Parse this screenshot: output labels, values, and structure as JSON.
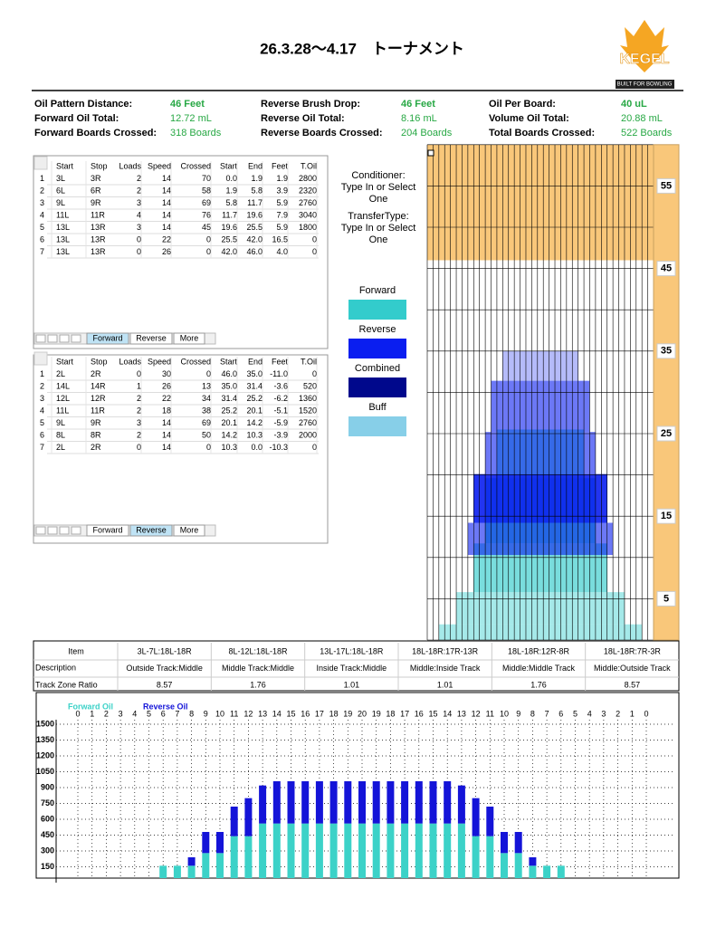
{
  "header": {
    "title": "26.3.28～4.17　トーナメント",
    "logo": "KEGEL",
    "logo_tagline": "BUILT FOR BOWLING"
  },
  "stats": [
    {
      "label": "Oil Pattern Distance:",
      "value": "46 Feet"
    },
    {
      "label": "Reverse Brush Drop:",
      "value": "46 Feet"
    },
    {
      "label": "Oil Per Board:",
      "value": "40 uL"
    },
    {
      "label": "Forward Oil Total:",
      "value": "12.72 mL"
    },
    {
      "label": "Reverse Oil Total:",
      "value": "8.16 mL"
    },
    {
      "label": "Volume Oil Total:",
      "value": "20.88 mL"
    },
    {
      "label": "Forward Boards Crossed:",
      "value": "318 Boards"
    },
    {
      "label": "Reverse Boards Crossed:",
      "value": "204 Boards"
    },
    {
      "label": "Total Boards Crossed:",
      "value": "522 Boards"
    }
  ],
  "forward_table": {
    "headers": [
      "Start",
      "Stop",
      "Loads",
      "Speed",
      "Crossed",
      "Start",
      "End",
      "Feet",
      "T.Oil"
    ],
    "rows": [
      [
        "1",
        "3L",
        "3R",
        "2",
        "14",
        "70",
        "0.0",
        "1.9",
        "1.9",
        "2800"
      ],
      [
        "2",
        "6L",
        "6R",
        "2",
        "14",
        "58",
        "1.9",
        "5.8",
        "3.9",
        "2320"
      ],
      [
        "3",
        "9L",
        "9R",
        "3",
        "14",
        "69",
        "5.8",
        "11.7",
        "5.9",
        "2760"
      ],
      [
        "4",
        "11L",
        "11R",
        "4",
        "14",
        "76",
        "11.7",
        "19.6",
        "7.9",
        "3040"
      ],
      [
        "5",
        "13L",
        "13R",
        "3",
        "14",
        "45",
        "19.6",
        "25.5",
        "5.9",
        "1800"
      ],
      [
        "6",
        "13L",
        "13R",
        "0",
        "22",
        "0",
        "25.5",
        "42.0",
        "16.5",
        "0"
      ],
      [
        "7",
        "13L",
        "13R",
        "0",
        "26",
        "0",
        "42.0",
        "46.0",
        "4.0",
        "0"
      ]
    ],
    "tabs": [
      "Forward",
      "Reverse",
      "More"
    ],
    "active_tab": 0
  },
  "reverse_table": {
    "headers": [
      "Start",
      "Stop",
      "Loads",
      "Speed",
      "Crossed",
      "Start",
      "End",
      "Feet",
      "T.Oil"
    ],
    "rows": [
      [
        "1",
        "2L",
        "2R",
        "0",
        "30",
        "0",
        "46.0",
        "35.0",
        "-11.0",
        "0"
      ],
      [
        "2",
        "14L",
        "14R",
        "1",
        "26",
        "13",
        "35.0",
        "31.4",
        "-3.6",
        "520"
      ],
      [
        "3",
        "12L",
        "12R",
        "2",
        "22",
        "34",
        "31.4",
        "25.2",
        "-6.2",
        "1360"
      ],
      [
        "4",
        "11L",
        "11R",
        "2",
        "18",
        "38",
        "25.2",
        "20.1",
        "-5.1",
        "1520"
      ],
      [
        "5",
        "9L",
        "9R",
        "3",
        "14",
        "69",
        "20.1",
        "14.2",
        "-5.9",
        "2760"
      ],
      [
        "6",
        "8L",
        "8R",
        "2",
        "14",
        "50",
        "14.2",
        "10.3",
        "-3.9",
        "2000"
      ],
      [
        "7",
        "2L",
        "2R",
        "0",
        "14",
        "0",
        "10.3",
        "0.0",
        "-10.3",
        "0"
      ]
    ],
    "tabs": [
      "Forward",
      "Reverse",
      "More"
    ],
    "active_tab": 1
  },
  "settings": {
    "conditioner": "Conditioner: Type In or Select One",
    "transfer": "TransferType: Type In or Select One"
  },
  "legend": [
    {
      "label": "Forward",
      "color": "#33cccc"
    },
    {
      "label": "Reverse",
      "color": "#0a1ef0"
    },
    {
      "label": "Combined",
      "color": "#00088c"
    },
    {
      "label": "Buff",
      "color": "#87cfe8"
    }
  ],
  "lane": {
    "ticks": [
      55,
      45,
      35,
      25,
      15,
      5
    ]
  },
  "zones": {
    "header": "Item",
    "row_labels": [
      "Description",
      "Track Zone Ratio"
    ],
    "columns": [
      {
        "item": "3L-7L:18L-18R",
        "description": "Outside Track:Middle",
        "ratio": "8.57"
      },
      {
        "item": "8L-12L:18L-18R",
        "description": "Middle Track:Middle",
        "ratio": "1.76"
      },
      {
        "item": "13L-17L:18L-18R",
        "description": "Inside Track:Middle",
        "ratio": "1.01"
      },
      {
        "item": "18L-18R:17R-13R",
        "description": "Middle:Inside Track",
        "ratio": "1.01"
      },
      {
        "item": "18L-18R:12R-8R",
        "description": "Middle:Middle Track",
        "ratio": "1.76"
      },
      {
        "item": "18L-18R:7R-3R",
        "description": "Middle:Outside Track",
        "ratio": "8.57"
      }
    ]
  },
  "chart_data": {
    "type": "stacked_bar",
    "categories": [
      "0",
      "1",
      "2",
      "3",
      "4",
      "5",
      "6",
      "7",
      "8",
      "9",
      "10",
      "11",
      "12",
      "13",
      "14",
      "15",
      "16",
      "17",
      "18",
      "19",
      "20",
      "19",
      "18",
      "17",
      "16",
      "15",
      "14",
      "13",
      "12",
      "11",
      "10",
      "9",
      "8",
      "7",
      "6",
      "5",
      "4",
      "3",
      "2",
      "1",
      "0"
    ],
    "series": [
      {
        "name": "Forward Oil",
        "color": "#3cd2c8",
        "values": [
          0,
          0,
          0,
          20,
          20,
          20,
          160,
          160,
          160,
          280,
          280,
          440,
          440,
          560,
          560,
          560,
          560,
          560,
          560,
          560,
          560,
          560,
          560,
          560,
          560,
          560,
          560,
          560,
          440,
          440,
          280,
          280,
          160,
          160,
          160,
          20,
          20,
          20,
          0,
          0,
          0
        ]
      },
      {
        "name": "Reverse Oil",
        "color": "#1414d8",
        "values": [
          0,
          0,
          0,
          0,
          0,
          0,
          0,
          0,
          80,
          200,
          200,
          280,
          360,
          360,
          400,
          400,
          400,
          400,
          400,
          400,
          400,
          400,
          400,
          400,
          400,
          400,
          400,
          360,
          360,
          280,
          200,
          200,
          80,
          0,
          0,
          0,
          0,
          0,
          0,
          0,
          0
        ]
      }
    ],
    "ylim": [
      0,
      1500
    ],
    "yticks": [
      150,
      300,
      450,
      600,
      750,
      900,
      1050,
      1200,
      1350,
      1500
    ],
    "grid": true
  }
}
